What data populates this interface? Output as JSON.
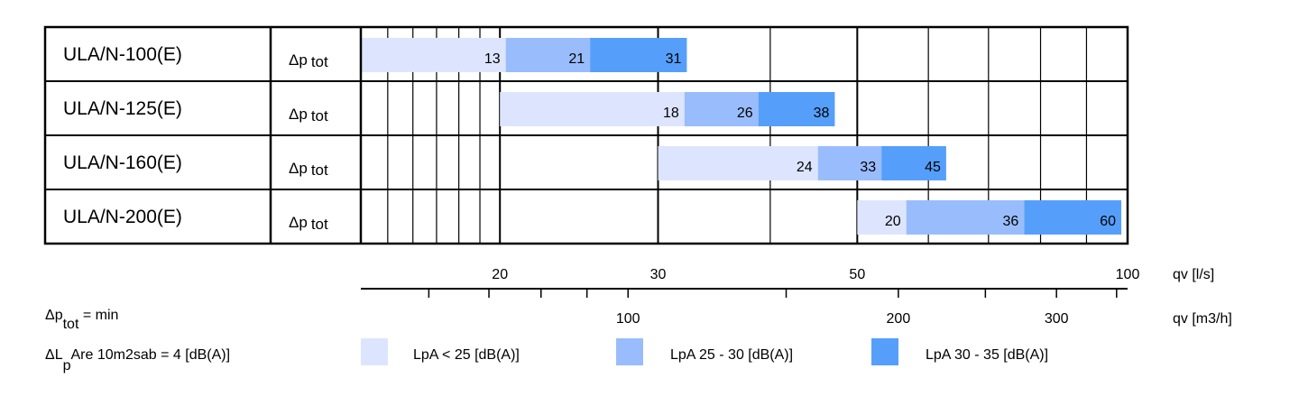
{
  "chart_data": {
    "type": "bar",
    "orientation": "horizontal-range",
    "x_scale": "log",
    "x_range_ls": [
      14,
      100
    ],
    "rows": [
      {
        "model": "ULA/N-100(E)",
        "param_main": "Δp",
        "param_sub": "tot",
        "segments": [
          {
            "from": 14,
            "to": 20.3,
            "label": "13",
            "level": "low"
          },
          {
            "from": 20.3,
            "to": 25.2,
            "label": "21",
            "level": "mid"
          },
          {
            "from": 25.2,
            "to": 32.3,
            "label": "31",
            "level": "high"
          }
        ]
      },
      {
        "model": "ULA/N-125(E)",
        "param_main": "Δp",
        "param_sub": "tot",
        "segments": [
          {
            "from": 20,
            "to": 32.1,
            "label": "18",
            "level": "low"
          },
          {
            "from": 32.1,
            "to": 38.8,
            "label": "26",
            "level": "mid"
          },
          {
            "from": 38.8,
            "to": 47.2,
            "label": "38",
            "level": "high"
          }
        ]
      },
      {
        "model": "ULA/N-160(E)",
        "param_main": "Δp",
        "param_sub": "tot",
        "segments": [
          {
            "from": 30,
            "to": 45.2,
            "label": "24",
            "level": "low"
          },
          {
            "from": 45.2,
            "to": 53.2,
            "label": "33",
            "level": "mid"
          },
          {
            "from": 53.2,
            "to": 62.8,
            "label": "45",
            "level": "high"
          }
        ]
      },
      {
        "model": "ULA/N-200(E)",
        "param_main": "Δp",
        "param_sub": "tot",
        "segments": [
          {
            "from": 50,
            "to": 56.7,
            "label": "20",
            "level": "low"
          },
          {
            "from": 56.7,
            "to": 76.7,
            "label": "36",
            "level": "mid"
          },
          {
            "from": 76.7,
            "to": 98.4,
            "label": "60",
            "level": "high"
          }
        ]
      }
    ],
    "axis_ls": {
      "label": "qv [l/s]",
      "ticks": [
        20,
        30,
        50,
        100
      ]
    },
    "axis_m3h": {
      "label": "qv [m3/h]",
      "ticks": [
        100,
        200,
        300
      ],
      "minor_ticks": [
        60,
        70,
        80,
        90,
        150,
        250,
        350
      ]
    },
    "colors": {
      "low": "#dde5fe",
      "mid": "#99bdfc",
      "high": "#559ffb"
    },
    "legend": {
      "items": [
        {
          "level": "low",
          "label": "LpA < 25 [dB(A)]"
        },
        {
          "level": "mid",
          "label": "LpA 25 - 30 [dB(A)]"
        },
        {
          "level": "high",
          "label": "LpA 30 - 35 [dB(A)]"
        }
      ]
    },
    "notes": {
      "line1_main": "Δp",
      "line1_sub": "tot",
      "line1_tail": " = min",
      "line2_main": "ΔL",
      "line2_sub": "p",
      "line2_tail": "Are 10m2sab = 4 [dB(A)]"
    }
  }
}
